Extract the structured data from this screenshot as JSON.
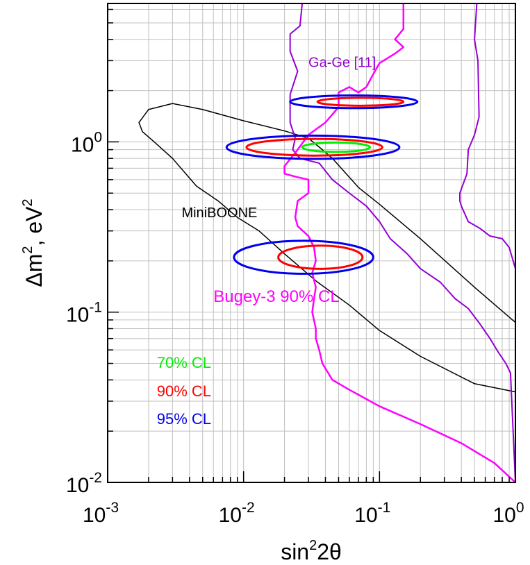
{
  "chart_data": {
    "type": "line",
    "xlabel": {
      "base": "sin",
      "sup": "2",
      "rest": "2θ"
    },
    "ylabel": {
      "a": "Δm",
      "sup1": "2",
      "b": ", eV",
      "sup2": "2"
    },
    "xscale": "log",
    "yscale": "log",
    "xlim": [
      0.001,
      1
    ],
    "ylim": [
      0.01,
      6.5
    ],
    "grid": true,
    "xticks": [
      {
        "value": 0.001,
        "base": "10",
        "exp": "-3"
      },
      {
        "value": 0.01,
        "base": "10",
        "exp": "-2"
      },
      {
        "value": 0.1,
        "base": "10",
        "exp": "-1"
      },
      {
        "value": 1,
        "base": "10",
        "exp": "0"
      }
    ],
    "yticks": [
      {
        "value": 0.01,
        "base": "10",
        "exp": "-2"
      },
      {
        "value": 0.1,
        "base": "10",
        "exp": "-1"
      },
      {
        "value": 1,
        "base": "10",
        "exp": "0"
      }
    ],
    "annotations": [
      {
        "key": "gage",
        "text": "Ga-Ge [11]",
        "color": "#9400d3",
        "x": 0.03,
        "y": 2.75
      },
      {
        "key": "miniboone",
        "text": "MiniBOONE",
        "color": "#000000",
        "x": 0.0035,
        "y": 0.36
      },
      {
        "key": "bugey",
        "text": "Bugey-3 90% CL",
        "color": "#ff00ff",
        "x": 0.006,
        "y": 0.115
      }
    ],
    "legend": [
      {
        "key": "cl70",
        "text": "70% CL",
        "color": "#00ee00",
        "x": 0.0023,
        "y": 0.047
      },
      {
        "key": "cl90",
        "text": "90% CL",
        "color": "#ff0000",
        "x": 0.0023,
        "y": 0.032
      },
      {
        "key": "cl95",
        "text": "95% CL",
        "color": "#0000ee",
        "x": 0.0023,
        "y": 0.022
      }
    ],
    "series": [
      {
        "key": "miniboone_region",
        "color": "#000000",
        "width": 1.5,
        "closed": false,
        "x": [
          1,
          0.5,
          0.2,
          0.1,
          0.07,
          0.055,
          0.045,
          0.038,
          0.03,
          0.02,
          0.01,
          0.005,
          0.003,
          0.002,
          0.0017,
          0.0018,
          0.0022,
          0.003,
          0.0045,
          0.0065,
          0.009,
          0.013,
          0.02,
          0.035,
          0.06,
          0.1,
          0.2,
          0.5,
          1
        ],
        "y": [
          0.087,
          0.14,
          0.27,
          0.43,
          0.54,
          0.67,
          0.8,
          0.9,
          1.05,
          1.16,
          1.33,
          1.55,
          1.68,
          1.55,
          1.3,
          1.15,
          1.0,
          0.8,
          0.55,
          0.45,
          0.36,
          0.3,
          0.22,
          0.15,
          0.11,
          0.078,
          0.055,
          0.038,
          0.034
        ]
      },
      {
        "key": "gage_left",
        "color": "#9400d3",
        "width": 2,
        "closed": false,
        "x": [
          0.027,
          0.026,
          0.022,
          0.022,
          0.025,
          0.022,
          0.022,
          0.024,
          0.023,
          0.026,
          0.036,
          0.045,
          0.06,
          0.08,
          0.1,
          0.12,
          0.16,
          0.2,
          0.28,
          0.36,
          0.45,
          0.55,
          0.65,
          0.75,
          0.85,
          0.92,
          1.0
        ],
        "y": [
          6.5,
          4.8,
          4.3,
          3.4,
          2.6,
          1.9,
          1.3,
          1.05,
          0.9,
          0.8,
          0.75,
          0.6,
          0.5,
          0.42,
          0.34,
          0.27,
          0.22,
          0.18,
          0.15,
          0.12,
          0.105,
          0.085,
          0.07,
          0.058,
          0.05,
          0.044,
          0.01
        ]
      },
      {
        "key": "gage_right",
        "color": "#9400d3",
        "width": 2,
        "closed": false,
        "x": [
          0.52,
          0.5,
          0.53,
          0.54,
          0.5,
          0.45,
          0.44,
          0.39,
          0.39,
          0.4,
          0.45,
          0.55,
          0.65,
          0.8,
          0.9,
          1.0
        ],
        "y": [
          6.5,
          4.0,
          3.0,
          1.4,
          1.1,
          0.9,
          0.65,
          0.5,
          0.45,
          0.42,
          0.34,
          0.31,
          0.28,
          0.27,
          0.24,
          0.18
        ]
      },
      {
        "key": "bugey",
        "color": "#ff00ff",
        "width": 2.5,
        "closed": false,
        "x": [
          0.15,
          0.15,
          0.13,
          0.15,
          0.13,
          0.1,
          0.09,
          0.08,
          0.07,
          0.06,
          0.05,
          0.05,
          0.045,
          0.04,
          0.03,
          0.025,
          0.02,
          0.02,
          0.025,
          0.03,
          0.03,
          0.025,
          0.024,
          0.025,
          0.03,
          0.033,
          0.034,
          0.032,
          0.034,
          0.033,
          0.032,
          0.034,
          0.034,
          0.036,
          0.038,
          0.045,
          0.06,
          0.1,
          0.2,
          0.4,
          0.7,
          1.0
        ],
        "y": [
          6.5,
          4.6,
          4.0,
          3.6,
          3.3,
          2.9,
          2.5,
          2.1,
          1.95,
          2.1,
          1.95,
          1.6,
          1.45,
          1.3,
          1.1,
          0.9,
          0.72,
          0.65,
          0.62,
          0.6,
          0.5,
          0.45,
          0.36,
          0.32,
          0.28,
          0.24,
          0.2,
          0.17,
          0.14,
          0.12,
          0.1,
          0.08,
          0.07,
          0.06,
          0.05,
          0.04,
          0.035,
          0.028,
          0.022,
          0.017,
          0.013,
          0.01
        ]
      },
      {
        "key": "e95_top",
        "color": "#0000ee",
        "width": 3,
        "closed": true,
        "ellipse": {
          "x0": 0.022,
          "x1": 0.19,
          "yc": 1.72,
          "yr": 1.09
        }
      },
      {
        "key": "e90_top",
        "color": "#ff0000",
        "width": 3,
        "closed": true,
        "ellipse": {
          "x0": 0.035,
          "x1": 0.15,
          "yc": 1.72,
          "yr": 1.055
        }
      },
      {
        "key": "e95_mid",
        "color": "#0000ee",
        "width": 3,
        "closed": true,
        "ellipse": {
          "x0": 0.0075,
          "x1": 0.14,
          "yc": 0.93,
          "yr": 1.17
        }
      },
      {
        "key": "e90_mid",
        "color": "#ff0000",
        "width": 3,
        "closed": true,
        "ellipse": {
          "x0": 0.0105,
          "x1": 0.105,
          "yc": 0.93,
          "yr": 1.12
        }
      },
      {
        "key": "e70_mid",
        "color": "#00ee00",
        "width": 3,
        "closed": true,
        "ellipse": {
          "x0": 0.027,
          "x1": 0.085,
          "yc": 0.93,
          "yr": 1.065
        }
      },
      {
        "key": "e95_low",
        "color": "#0000ee",
        "width": 3,
        "closed": true,
        "ellipse": {
          "x0": 0.0085,
          "x1": 0.09,
          "yc": 0.21,
          "yr": 1.25
        }
      },
      {
        "key": "e90_low",
        "color": "#ff0000",
        "width": 3,
        "closed": true,
        "ellipse": {
          "x0": 0.018,
          "x1": 0.075,
          "yc": 0.21,
          "yr": 1.17
        }
      }
    ]
  }
}
